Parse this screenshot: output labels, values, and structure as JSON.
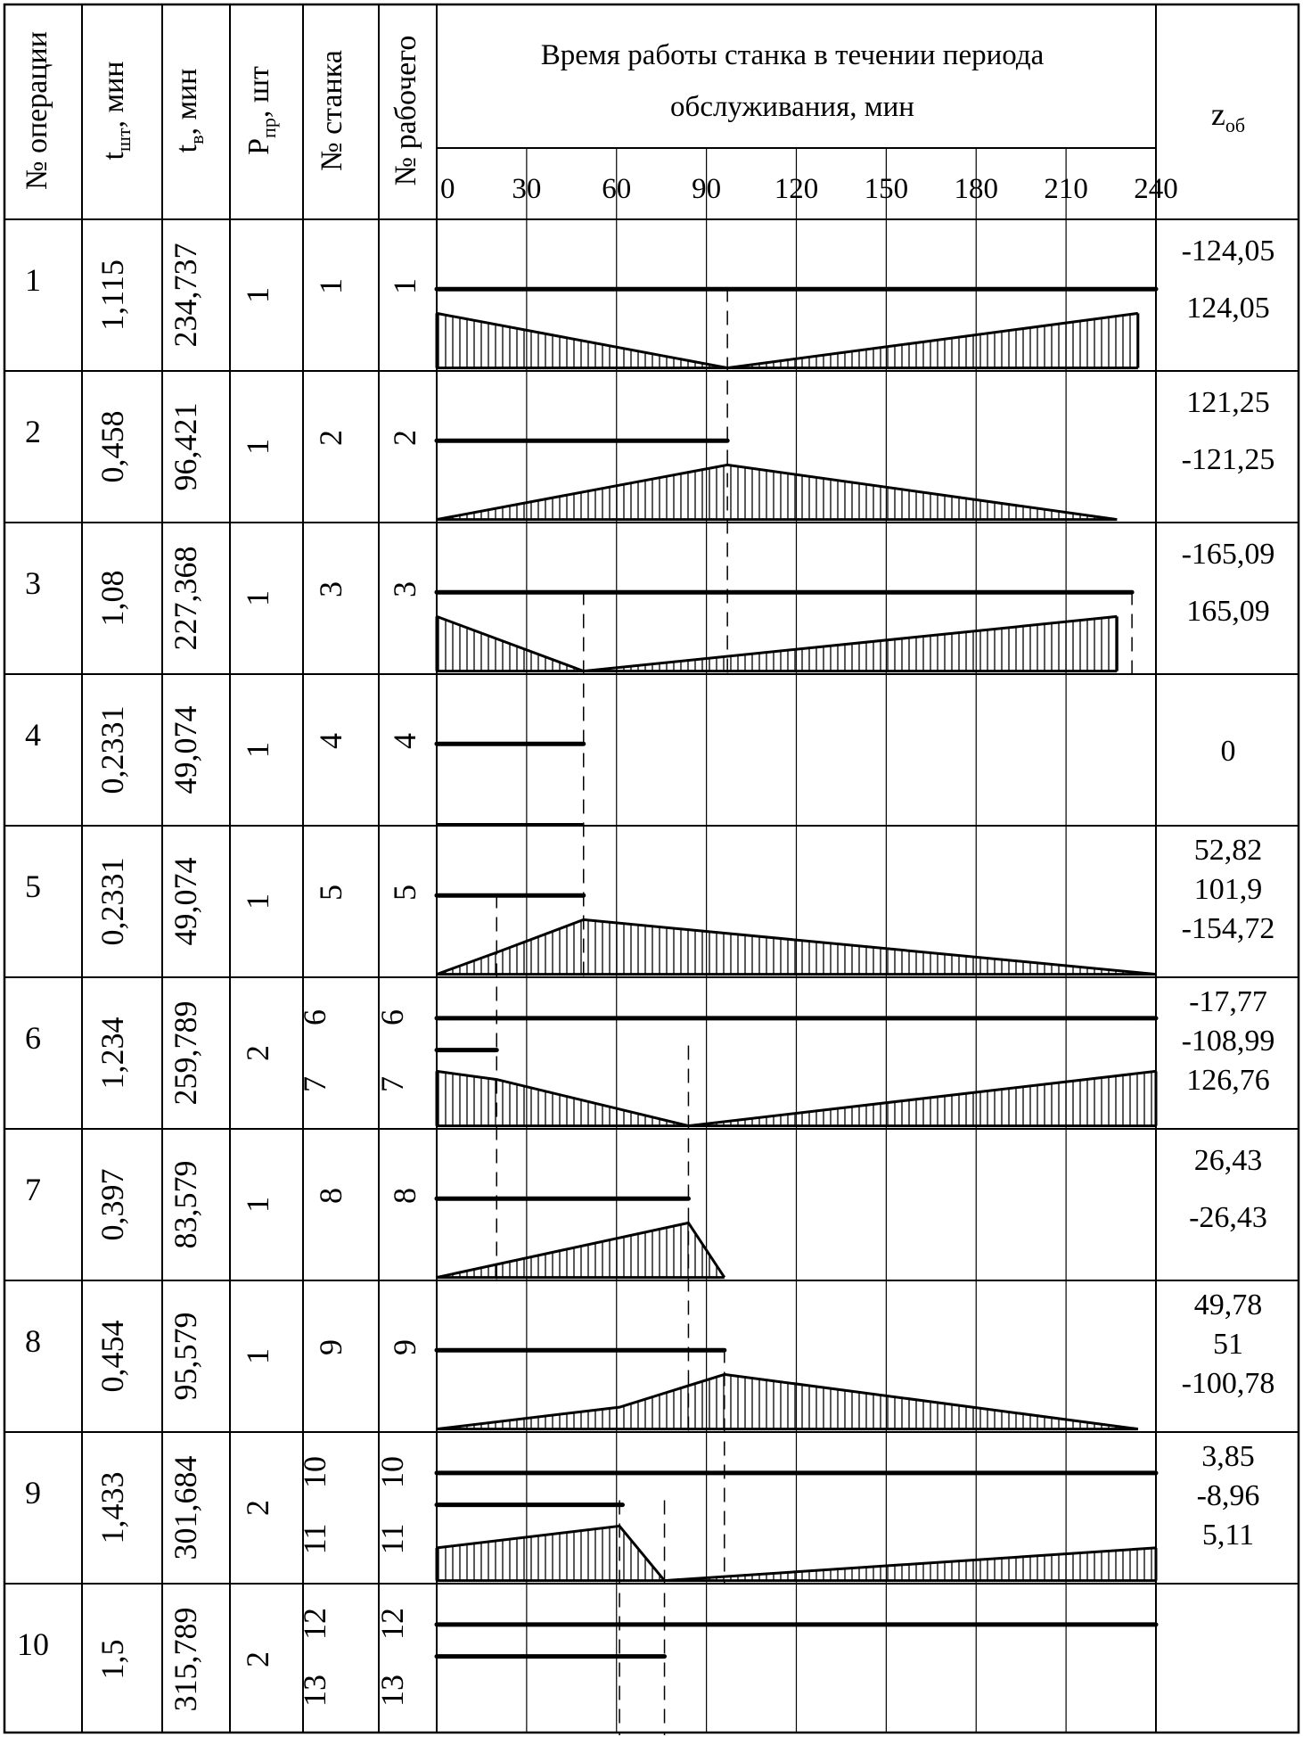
{
  "header": {
    "op_no": "№ операции",
    "t_sht": {
      "main": "t",
      "sub": "шт",
      "rest": ", мин"
    },
    "t_v": {
      "main": "t",
      "sub": "в",
      "rest": ", мин"
    },
    "p_pr": {
      "main": "P",
      "sub": "пр",
      "rest": ", шт"
    },
    "machine_no": "№ станка",
    "worker_no": "№ рабочего",
    "chart_title_line1": "Время работы станка в течении периода",
    "chart_title_line2": "обслуживания, мин",
    "z_ob": {
      "main": "z",
      "sub": "об"
    }
  },
  "time_scale": [
    "0",
    "30",
    "60",
    "90",
    "120",
    "150",
    "180",
    "210",
    "240"
  ],
  "rows": [
    {
      "op": "1",
      "t_sht": "1,115",
      "t_v": "234,737",
      "p_pr": "1",
      "machines": [
        "1"
      ],
      "workers": [
        "1"
      ],
      "z": [
        "-124,05",
        "124,05"
      ]
    },
    {
      "op": "2",
      "t_sht": "0,458",
      "t_v": "96,421",
      "p_pr": "1",
      "machines": [
        "2"
      ],
      "workers": [
        "2"
      ],
      "z": [
        "121,25",
        "-121,25"
      ]
    },
    {
      "op": "3",
      "t_sht": "1,08",
      "t_v": "227,368",
      "p_pr": "1",
      "machines": [
        "3"
      ],
      "workers": [
        "3"
      ],
      "z": [
        "-165,09",
        "165,09"
      ]
    },
    {
      "op": "4",
      "t_sht": "0,2331",
      "t_v": "49,074",
      "p_pr": "1",
      "machines": [
        "4"
      ],
      "workers": [
        "4"
      ],
      "z": [
        "0"
      ]
    },
    {
      "op": "5",
      "t_sht": "0,2331",
      "t_v": "49,074",
      "p_pr": "1",
      "machines": [
        "5"
      ],
      "workers": [
        "5"
      ],
      "z": [
        "52,82",
        "101,9",
        "-154,72"
      ]
    },
    {
      "op": "6",
      "t_sht": "1,234",
      "t_v": "259,789",
      "p_pr": "2",
      "machines": [
        "6",
        "7"
      ],
      "workers": [
        "6",
        "7"
      ],
      "z": [
        "-17,77",
        "-108,99",
        "126,76"
      ]
    },
    {
      "op": "7",
      "t_sht": "0,397",
      "t_v": "83,579",
      "p_pr": "1",
      "machines": [
        "8"
      ],
      "workers": [
        "8"
      ],
      "z": [
        "26,43",
        "-26,43"
      ]
    },
    {
      "op": "8",
      "t_sht": "0,454",
      "t_v": "95,579",
      "p_pr": "1",
      "machines": [
        "9"
      ],
      "workers": [
        "9"
      ],
      "z": [
        "49,78",
        "51",
        "-100,78"
      ]
    },
    {
      "op": "9",
      "t_sht": "1,433",
      "t_v": "301,684",
      "p_pr": "2",
      "machines": [
        "10",
        "11"
      ],
      "workers": [
        "10",
        "11"
      ],
      "z": [
        "3,85",
        "-8,96",
        "5,11"
      ]
    },
    {
      "op": "10",
      "t_sht": "1,5",
      "t_v": "315,789",
      "p_pr": "2",
      "machines": [
        "12",
        "13"
      ],
      "workers": [
        "12",
        "13"
      ],
      "z": []
    }
  ],
  "chart_data": {
    "type": "gantt",
    "x_unit": "мин",
    "x_range": [
      0,
      240
    ],
    "work_bars": [
      {
        "row": 1,
        "start": 0,
        "end": 240
      },
      {
        "row": 2,
        "start": 0,
        "end": 97
      },
      {
        "row": 3,
        "start": 0,
        "end": 232
      },
      {
        "row": 4,
        "start": 0,
        "end": 49
      },
      {
        "row": 5,
        "start": 0,
        "end": 49
      },
      {
        "row": 6,
        "start": 0,
        "end": 240
      },
      {
        "row": 6,
        "start": 0,
        "end": 20
      },
      {
        "row": 7,
        "start": 0,
        "end": 84
      },
      {
        "row": 8,
        "start": 0,
        "end": 96
      },
      {
        "row": 9,
        "start": 0,
        "end": 240
      },
      {
        "row": 9,
        "start": 0,
        "end": 62
      },
      {
        "row": 10,
        "start": 0,
        "end": 240
      },
      {
        "row": 10,
        "start": 0,
        "end": 76
      }
    ],
    "thin_bars": [
      {
        "row": 5,
        "start": 0,
        "end": 49
      }
    ],
    "stock_diagrams": [
      {
        "row": 1,
        "points": [
          [
            0,
            1
          ],
          [
            97,
            0
          ],
          [
            234,
            1
          ]
        ]
      },
      {
        "row": 2,
        "points": [
          [
            0,
            0
          ],
          [
            97,
            1
          ],
          [
            227,
            0
          ]
        ]
      },
      {
        "row": 3,
        "points": [
          [
            0,
            1
          ],
          [
            49,
            0
          ],
          [
            227,
            1
          ]
        ]
      },
      {
        "row": 5,
        "points": [
          [
            0,
            0
          ],
          [
            20,
            0.4
          ],
          [
            49,
            1
          ],
          [
            240,
            0
          ]
        ]
      },
      {
        "row": 6,
        "points": [
          [
            0,
            1
          ],
          [
            20,
            0.85
          ],
          [
            84,
            0
          ],
          [
            240,
            1
          ]
        ]
      },
      {
        "row": 7,
        "points": [
          [
            0,
            0
          ],
          [
            84,
            1
          ],
          [
            96,
            0
          ]
        ]
      },
      {
        "row": 8,
        "points": [
          [
            0,
            0
          ],
          [
            61,
            0.4
          ],
          [
            96,
            1
          ],
          [
            234,
            0
          ]
        ]
      },
      {
        "row": 9,
        "points": [
          [
            0,
            0.6
          ],
          [
            61,
            1
          ],
          [
            76,
            0
          ],
          [
            240,
            0.6
          ]
        ]
      }
    ],
    "guides": [
      {
        "t": 97,
        "from_row": 1,
        "to_row": 3
      },
      {
        "t": 232,
        "from_row": 3,
        "to_row": 3
      },
      {
        "t": 49,
        "from_row": 3,
        "to_row": 5
      },
      {
        "t": 20,
        "from_row": 5,
        "to_row": 7
      },
      {
        "t": 84,
        "from_row": 6,
        "to_row": 8
      },
      {
        "t": 96,
        "from_row": 8,
        "to_row": 9
      },
      {
        "t": 61,
        "from_row": 9,
        "to_row": 10
      },
      {
        "t": 76,
        "from_row": 9,
        "to_row": 10
      }
    ]
  }
}
